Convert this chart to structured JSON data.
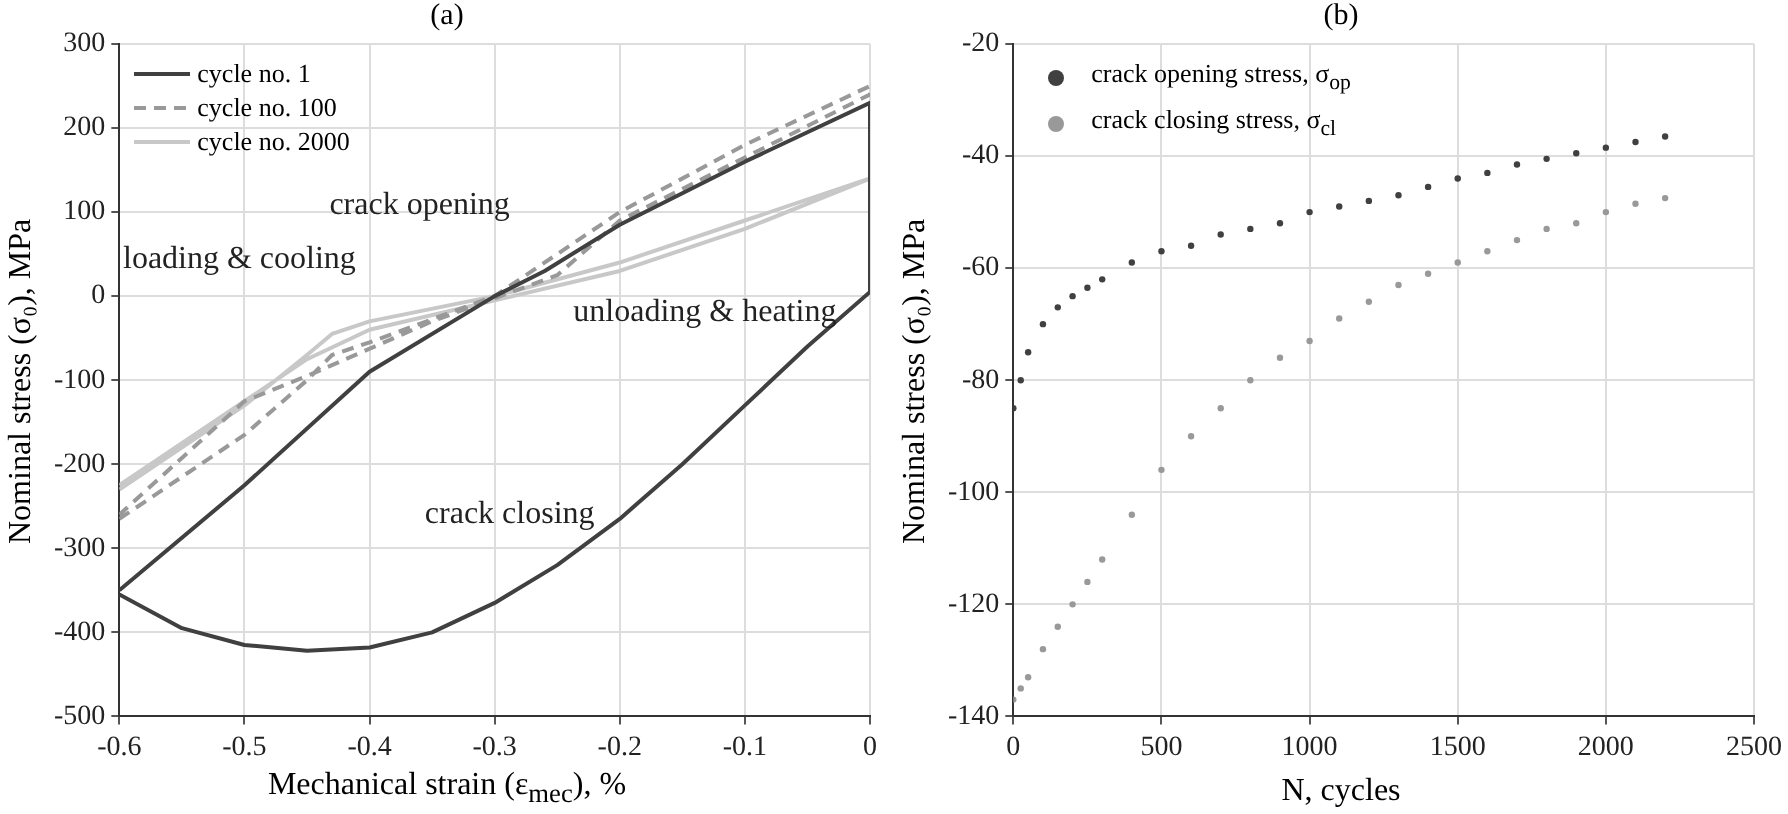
{
  "chart_data": [
    {
      "type": "line",
      "title": "(a)",
      "xlabel": "Mechanical strain (ε$_{mec}$), %",
      "ylabel": "Nominal stress (σ₀), MPa",
      "xlim": [
        -0.6,
        0
      ],
      "xticks": [
        -0.6,
        -0.5,
        -0.4,
        -0.3,
        -0.2,
        -0.1,
        0
      ],
      "ylim": [
        -500,
        300
      ],
      "yticks": [
        -500,
        -400,
        -300,
        -200,
        -100,
        0,
        100,
        200,
        300
      ],
      "grid": true,
      "legend": "top left",
      "marker": "none",
      "annotations": [
        "crack opening",
        "crack closing",
        "loading & cooling",
        "unloading & heating"
      ],
      "series": [
        {
          "name": "cycle no. 1",
          "color": "#404040",
          "line_style": "solid",
          "x": [
            -0.6,
            -0.55,
            -0.5,
            -0.45,
            -0.4,
            -0.35,
            -0.3,
            -0.25,
            -0.2,
            -0.15,
            -0.1,
            -0.05,
            0,
            0,
            -0.1,
            -0.2,
            -0.26,
            -0.3,
            -0.4,
            -0.5,
            -0.6
          ],
          "values": [
            -355,
            -395,
            -415,
            -422,
            -418,
            -400,
            -365,
            -320,
            -265,
            -200,
            -130,
            -60,
            5,
            230,
            160,
            85,
            30,
            0,
            -90,
            -225,
            -350
          ]
        },
        {
          "name": "cycle no. 100",
          "color": "#999999",
          "line_style": "dashed",
          "x": [
            -0.6,
            -0.5,
            -0.45,
            -0.43,
            -0.4,
            -0.3,
            -0.2,
            -0.1,
            0,
            0,
            -0.1,
            -0.2,
            -0.25,
            -0.35,
            -0.45,
            -0.5,
            -0.6
          ],
          "values": [
            -265,
            -165,
            -100,
            -70,
            -55,
            0,
            100,
            180,
            250,
            240,
            165,
            90,
            25,
            -30,
            -95,
            -125,
            -260
          ]
        },
        {
          "name": "cycle no. 2000",
          "color": "#c8c8c8",
          "line_style": "solid",
          "x": [
            -0.6,
            -0.5,
            -0.45,
            -0.43,
            -0.4,
            -0.3,
            -0.2,
            -0.1,
            0,
            -0.1,
            -0.2,
            -0.3,
            -0.4,
            -0.45,
            -0.5,
            -0.6
          ],
          "values": [
            -230,
            -130,
            -70,
            -45,
            -30,
            0,
            40,
            90,
            140,
            80,
            30,
            -5,
            -40,
            -75,
            -125,
            -225
          ]
        }
      ]
    },
    {
      "type": "scatter",
      "title": "(b)",
      "xlabel": "N, cycles",
      "ylabel": "Nominal stress (σ₀), MPa",
      "xlim": [
        0,
        2500
      ],
      "xticks": [
        0,
        500,
        1000,
        1500,
        2000,
        2500
      ],
      "ylim": [
        -140,
        -20
      ],
      "yticks": [
        -140,
        -120,
        -100,
        -80,
        -60,
        -40,
        -20
      ],
      "grid": true,
      "legend": "top left",
      "marker": "circle",
      "series": [
        {
          "name": "crack opening stress, σ$_{op}$",
          "color": "#404040",
          "x": [
            0,
            25,
            50,
            100,
            150,
            200,
            250,
            300,
            400,
            500,
            600,
            700,
            800,
            900,
            1000,
            1100,
            1200,
            1300,
            1400,
            1500,
            1600,
            1700,
            1800,
            1900,
            2000,
            2100,
            2200
          ],
          "values": [
            -85,
            -80,
            -75,
            -70,
            -67,
            -65,
            -63.5,
            -62,
            -59,
            -57,
            -56,
            -54,
            -53,
            -52,
            -50,
            -49,
            -48,
            -47,
            -45.5,
            -44,
            -43,
            -41.5,
            -40.5,
            -39.5,
            -38.5,
            -37.5,
            -36.5
          ]
        },
        {
          "name": "crack closing stress, σ$_{cl}$",
          "color": "#999999",
          "x": [
            0,
            25,
            50,
            100,
            150,
            200,
            250,
            300,
            400,
            500,
            600,
            700,
            800,
            900,
            1000,
            1100,
            1200,
            1300,
            1400,
            1500,
            1600,
            1700,
            1800,
            1900,
            2000,
            2100,
            2200
          ],
          "values": [
            -137,
            -135,
            -133,
            -128,
            -124,
            -120,
            -116,
            -112,
            -104,
            -96,
            -90,
            -85,
            -80,
            -76,
            -73,
            -69,
            -66,
            -63,
            -61,
            -59,
            -57,
            -55,
            -53,
            -52,
            -50,
            -48.5,
            -47.5
          ]
        }
      ]
    }
  ]
}
